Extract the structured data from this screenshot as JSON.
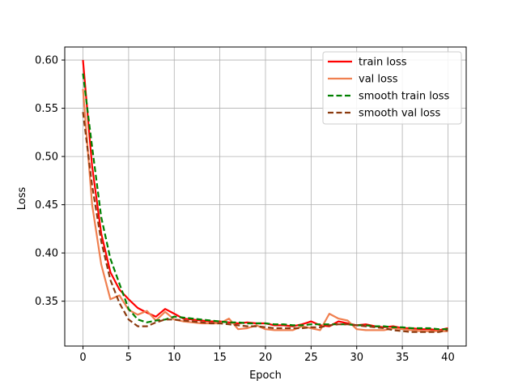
{
  "chart_data": {
    "type": "line",
    "xlabel": "Epoch",
    "ylabel": "Loss",
    "xlim": [
      -2,
      42
    ],
    "ylim": [
      0.3035,
      0.6135
    ],
    "xticks": [
      0,
      5,
      10,
      15,
      20,
      25,
      30,
      35,
      40
    ],
    "yticks": [
      0.35,
      0.4,
      0.45,
      0.5,
      0.55,
      0.6
    ],
    "ytick_labels": [
      "0.35",
      "0.40",
      "0.45",
      "0.50",
      "0.55",
      "0.60"
    ],
    "grid": true,
    "legend_position": "top-right",
    "x": [
      0,
      1,
      2,
      3,
      4,
      5,
      6,
      7,
      8,
      9,
      10,
      11,
      12,
      13,
      14,
      15,
      16,
      17,
      18,
      19,
      20,
      21,
      22,
      23,
      24,
      25,
      26,
      27,
      28,
      29,
      30,
      31,
      32,
      33,
      34,
      35,
      36,
      37,
      38,
      39,
      40
    ],
    "series": [
      {
        "name": "train loss",
        "color": "#ff0000",
        "style": "solid",
        "values": [
          0.6,
          0.49,
          0.42,
          0.38,
          0.362,
          0.352,
          0.343,
          0.338,
          0.334,
          0.342,
          0.337,
          0.332,
          0.331,
          0.33,
          0.329,
          0.329,
          0.328,
          0.327,
          0.328,
          0.327,
          0.327,
          0.325,
          0.325,
          0.324,
          0.326,
          0.329,
          0.325,
          0.324,
          0.329,
          0.327,
          0.325,
          0.326,
          0.324,
          0.323,
          0.324,
          0.322,
          0.322,
          0.321,
          0.321,
          0.32,
          0.322
        ]
      },
      {
        "name": "val loss",
        "color": "#f08050",
        "style": "solid",
        "values": [
          0.57,
          0.45,
          0.388,
          0.352,
          0.356,
          0.341,
          0.336,
          0.34,
          0.33,
          0.339,
          0.331,
          0.329,
          0.328,
          0.327,
          0.327,
          0.327,
          0.332,
          0.321,
          0.322,
          0.325,
          0.321,
          0.32,
          0.32,
          0.32,
          0.324,
          0.322,
          0.32,
          0.337,
          0.332,
          0.33,
          0.321,
          0.32,
          0.32,
          0.32,
          0.322,
          0.321,
          0.32,
          0.319,
          0.319,
          0.319,
          0.319
        ]
      },
      {
        "name": "smooth train loss",
        "color": "#008000",
        "style": "dashed",
        "values": [
          0.586,
          0.51,
          0.437,
          0.394,
          0.368,
          0.342,
          0.331,
          0.328,
          0.33,
          0.331,
          0.334,
          0.333,
          0.332,
          0.331,
          0.33,
          0.329,
          0.328,
          0.328,
          0.327,
          0.327,
          0.327,
          0.326,
          0.326,
          0.325,
          0.325,
          0.326,
          0.326,
          0.326,
          0.326,
          0.326,
          0.325,
          0.325,
          0.324,
          0.324,
          0.323,
          0.323,
          0.322,
          0.322,
          0.322,
          0.321,
          0.321
        ]
      },
      {
        "name": "smooth val loss",
        "color": "#8b3a0f",
        "style": "dashed",
        "values": [
          0.546,
          0.47,
          0.412,
          0.372,
          0.348,
          0.331,
          0.324,
          0.324,
          0.328,
          0.331,
          0.331,
          0.33,
          0.329,
          0.328,
          0.327,
          0.327,
          0.326,
          0.325,
          0.324,
          0.324,
          0.323,
          0.322,
          0.322,
          0.322,
          0.322,
          0.323,
          0.323,
          0.325,
          0.326,
          0.326,
          0.325,
          0.324,
          0.323,
          0.322,
          0.32,
          0.319,
          0.318,
          0.318,
          0.318,
          0.318,
          0.32
        ]
      }
    ]
  }
}
